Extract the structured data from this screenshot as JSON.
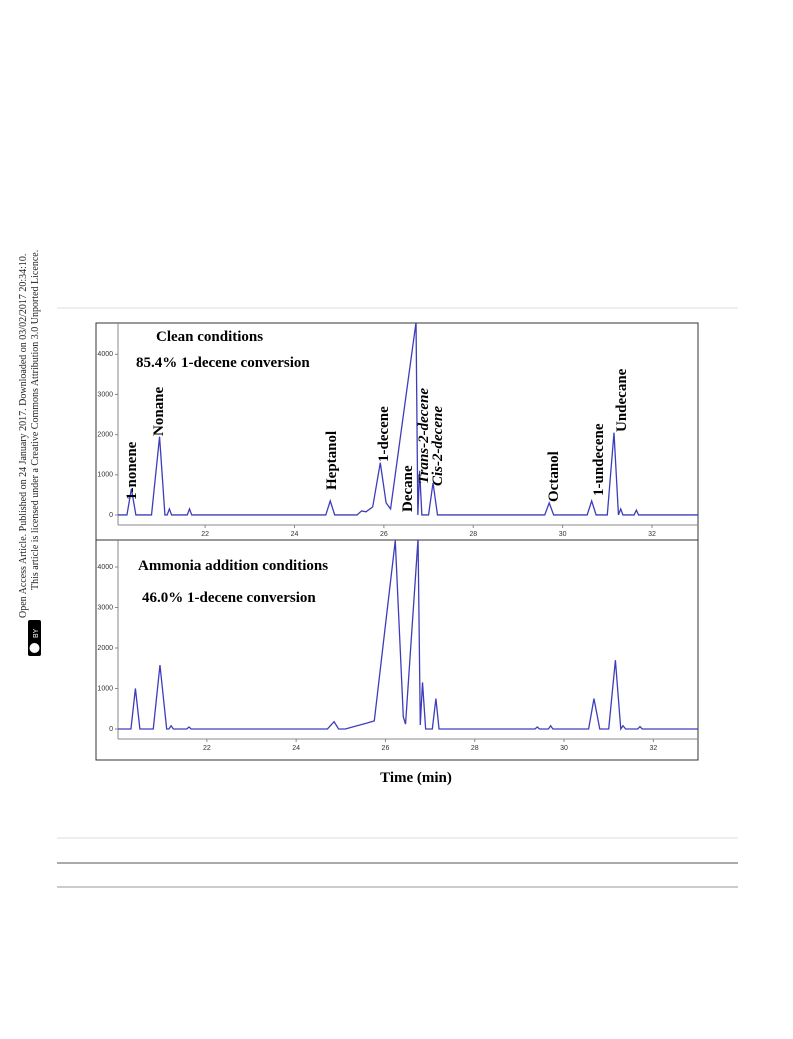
{
  "sidebar": {
    "line1": "Open Access Article. Published on 24 January 2017. Downloaded on 03/02/2017 20:34:10.",
    "line2": "This article is licensed under a Creative Commons Attribution 3.0 Unported Licence.",
    "badge": "BY"
  },
  "chart_data": [
    {
      "type": "line",
      "title": "Clean conditions",
      "subtitle": "85.4% 1-decene conversion",
      "color": "#3d3dbb",
      "x": [
        20.05,
        20.25,
        20.35,
        20.45,
        20.8,
        20.98,
        21.1,
        21.15,
        21.2,
        21.25,
        21.6,
        21.65,
        21.7,
        24.7,
        24.8,
        24.9,
        25.4,
        25.5,
        25.6,
        25.75,
        25.92,
        26.05,
        26.15,
        26.72,
        26.76,
        26.8,
        26.85,
        27.0,
        27.1,
        27.2,
        29.6,
        29.7,
        29.8,
        30.55,
        30.65,
        30.75,
        31.0,
        31.15,
        31.25,
        31.3,
        31.35,
        31.6,
        31.65,
        31.7,
        33.03
      ],
      "values": [
        0,
        0,
        650,
        0,
        0,
        1950,
        0,
        0,
        150,
        0,
        0,
        150,
        0,
        0,
        350,
        0,
        0,
        100,
        80,
        200,
        1300,
        300,
        150,
        4800,
        0,
        1100,
        0,
        0,
        800,
        0,
        0,
        300,
        0,
        0,
        350,
        0,
        0,
        2050,
        0,
        150,
        0,
        0,
        120,
        0,
        0
      ],
      "annotations": [
        "1-nonene",
        "Nonane",
        "Heptanol",
        "1-decene",
        "Decane",
        "Trans-2-decene",
        "Cis-2-decene",
        "Octanol",
        "1-undecene",
        "Undecane"
      ],
      "xlim": [
        20.05,
        33.03
      ],
      "xticks": [
        22,
        24,
        26,
        28,
        30,
        32
      ],
      "ylim": [
        -250,
        4780
      ],
      "yticks": [
        0,
        1000,
        2000,
        3000,
        4000
      ]
    },
    {
      "type": "line",
      "title": "Ammonia addition conditions",
      "subtitle": "46.0% 1-decene conversion",
      "color": "#3d3dbb",
      "xlabel": "Time (min)",
      "x": [
        20.01,
        20.3,
        20.4,
        20.5,
        20.8,
        20.95,
        21.1,
        21.15,
        21.2,
        21.25,
        21.55,
        21.6,
        21.65,
        24.7,
        24.85,
        24.95,
        25.1,
        25.6,
        25.75,
        26.22,
        26.4,
        26.45,
        26.73,
        26.78,
        26.83,
        26.9,
        27.05,
        27.13,
        27.2,
        29.35,
        29.4,
        29.45,
        29.65,
        29.7,
        29.75,
        30.55,
        30.67,
        30.8,
        31.0,
        31.15,
        31.27,
        31.32,
        31.38,
        31.65,
        31.7,
        31.75,
        33.0
      ],
      "values": [
        0,
        0,
        1000,
        0,
        0,
        1580,
        0,
        0,
        80,
        0,
        0,
        50,
        0,
        0,
        180,
        0,
        0,
        150,
        200,
        4650,
        300,
        120,
        4700,
        100,
        1150,
        0,
        0,
        750,
        0,
        0,
        50,
        0,
        0,
        80,
        0,
        0,
        750,
        0,
        0,
        1700,
        0,
        80,
        0,
        0,
        60,
        0,
        0
      ],
      "xlim": [
        20.01,
        33.0
      ],
      "xticks": [
        22,
        24,
        26,
        28,
        30,
        32
      ],
      "ylim": [
        -247,
        4667
      ],
      "yticks": [
        0,
        1000,
        2000,
        3000,
        4000
      ]
    }
  ]
}
